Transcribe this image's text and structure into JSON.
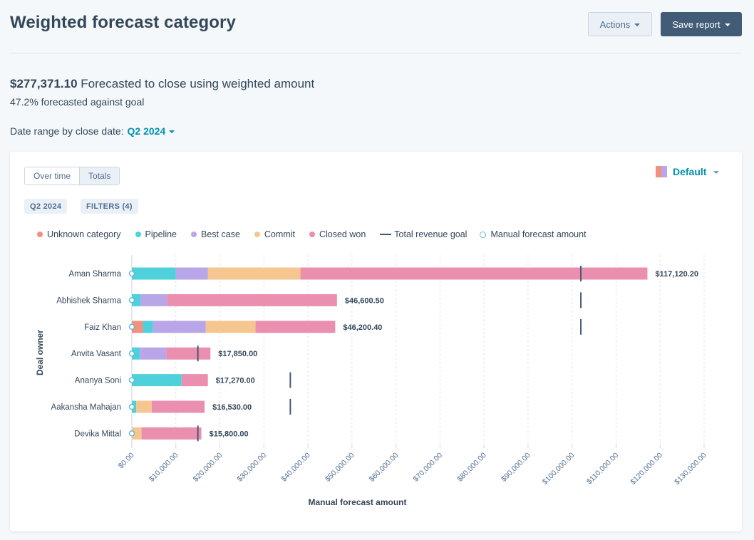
{
  "header": {
    "title": "Weighted forecast category",
    "actions_label": "Actions",
    "save_label": "Save report"
  },
  "summary": {
    "amount": "$277,371.10",
    "text": "Forecasted to close using weighted amount",
    "goal_text": "47.2% forecasted against goal",
    "date_label": "Date range by close date:",
    "date_value": "Q2 2024"
  },
  "report": {
    "toggle_over_time": "Over time",
    "toggle_totals": "Totals",
    "chip_period": "Q2 2024",
    "chip_filters": "FILTERS (4)",
    "view_label": "Default"
  },
  "colors": {
    "unknown": "#f2917d",
    "pipeline": "#4fd1dc",
    "best_case": "#b9a6e9",
    "commit": "#f5c68f",
    "closed_won": "#ea8fb0",
    "goal": "#425b76",
    "manual": "#5fbdd0"
  },
  "chart_data": {
    "type": "bar",
    "orientation": "horizontal",
    "stacked": true,
    "xlabel": "Manual forecast amount",
    "ylabel": "Deal owner",
    "xlim": [
      0,
      130000
    ],
    "xticks": [
      "$0.00",
      "$10,000.00",
      "$20,000.00",
      "$30,000.00",
      "$40,000.00",
      "$50,000.00",
      "$60,000.00",
      "$70,000.00",
      "$80,000.00",
      "$90,000.00",
      "$100,000.00",
      "$110,000.00",
      "$120,000.00",
      "$130,000.00"
    ],
    "legend": [
      {
        "key": "unknown",
        "label": "Unknown category",
        "marker": "dot"
      },
      {
        "key": "pipeline",
        "label": "Pipeline",
        "marker": "dot"
      },
      {
        "key": "best_case",
        "label": "Best case",
        "marker": "dot"
      },
      {
        "key": "commit",
        "label": "Commit",
        "marker": "dot"
      },
      {
        "key": "closed_won",
        "label": "Closed won",
        "marker": "dot"
      },
      {
        "key": "goal",
        "label": "Total revenue goal",
        "marker": "line"
      },
      {
        "key": "manual",
        "label": "Manual forecast amount",
        "marker": "ring"
      }
    ],
    "categories": [
      "Aman Sharma",
      "Abhishek Sharma",
      "Faiz Khan",
      "Anvita Vasant",
      "Ananya Soni",
      "Aakansha Mahajan",
      "Devika Mittal"
    ],
    "totals_labels": [
      "$117,120.20",
      "$46,600.50",
      "$46,200.40",
      "$17,850.00",
      "$17,270.00",
      "$16,530.00",
      "$15,800.00"
    ],
    "series": [
      {
        "name": "Unknown category",
        "key": "unknown",
        "values": [
          0,
          0,
          2500,
          0,
          0,
          0,
          0
        ]
      },
      {
        "name": "Pipeline",
        "key": "pipeline",
        "values": [
          10000,
          2000,
          2300,
          1800,
          11300,
          1000,
          0
        ]
      },
      {
        "name": "Best case",
        "key": "best_case",
        "values": [
          7300,
          6000,
          12000,
          6000,
          0,
          0,
          0
        ]
      },
      {
        "name": "Commit",
        "key": "commit",
        "values": [
          21000,
          0,
          11300,
          0,
          0,
          3500,
          2200
        ]
      },
      {
        "name": "Closed won",
        "key": "closed_won",
        "values": [
          78820.2,
          38600.5,
          18100.4,
          10050,
          5970,
          12030,
          13600
        ]
      }
    ],
    "revenue_goal": [
      102000,
      102000,
      102000,
      15000,
      36000,
      36000,
      15000
    ],
    "manual_forecast": [
      0,
      0,
      0,
      0,
      0,
      0,
      0
    ]
  }
}
